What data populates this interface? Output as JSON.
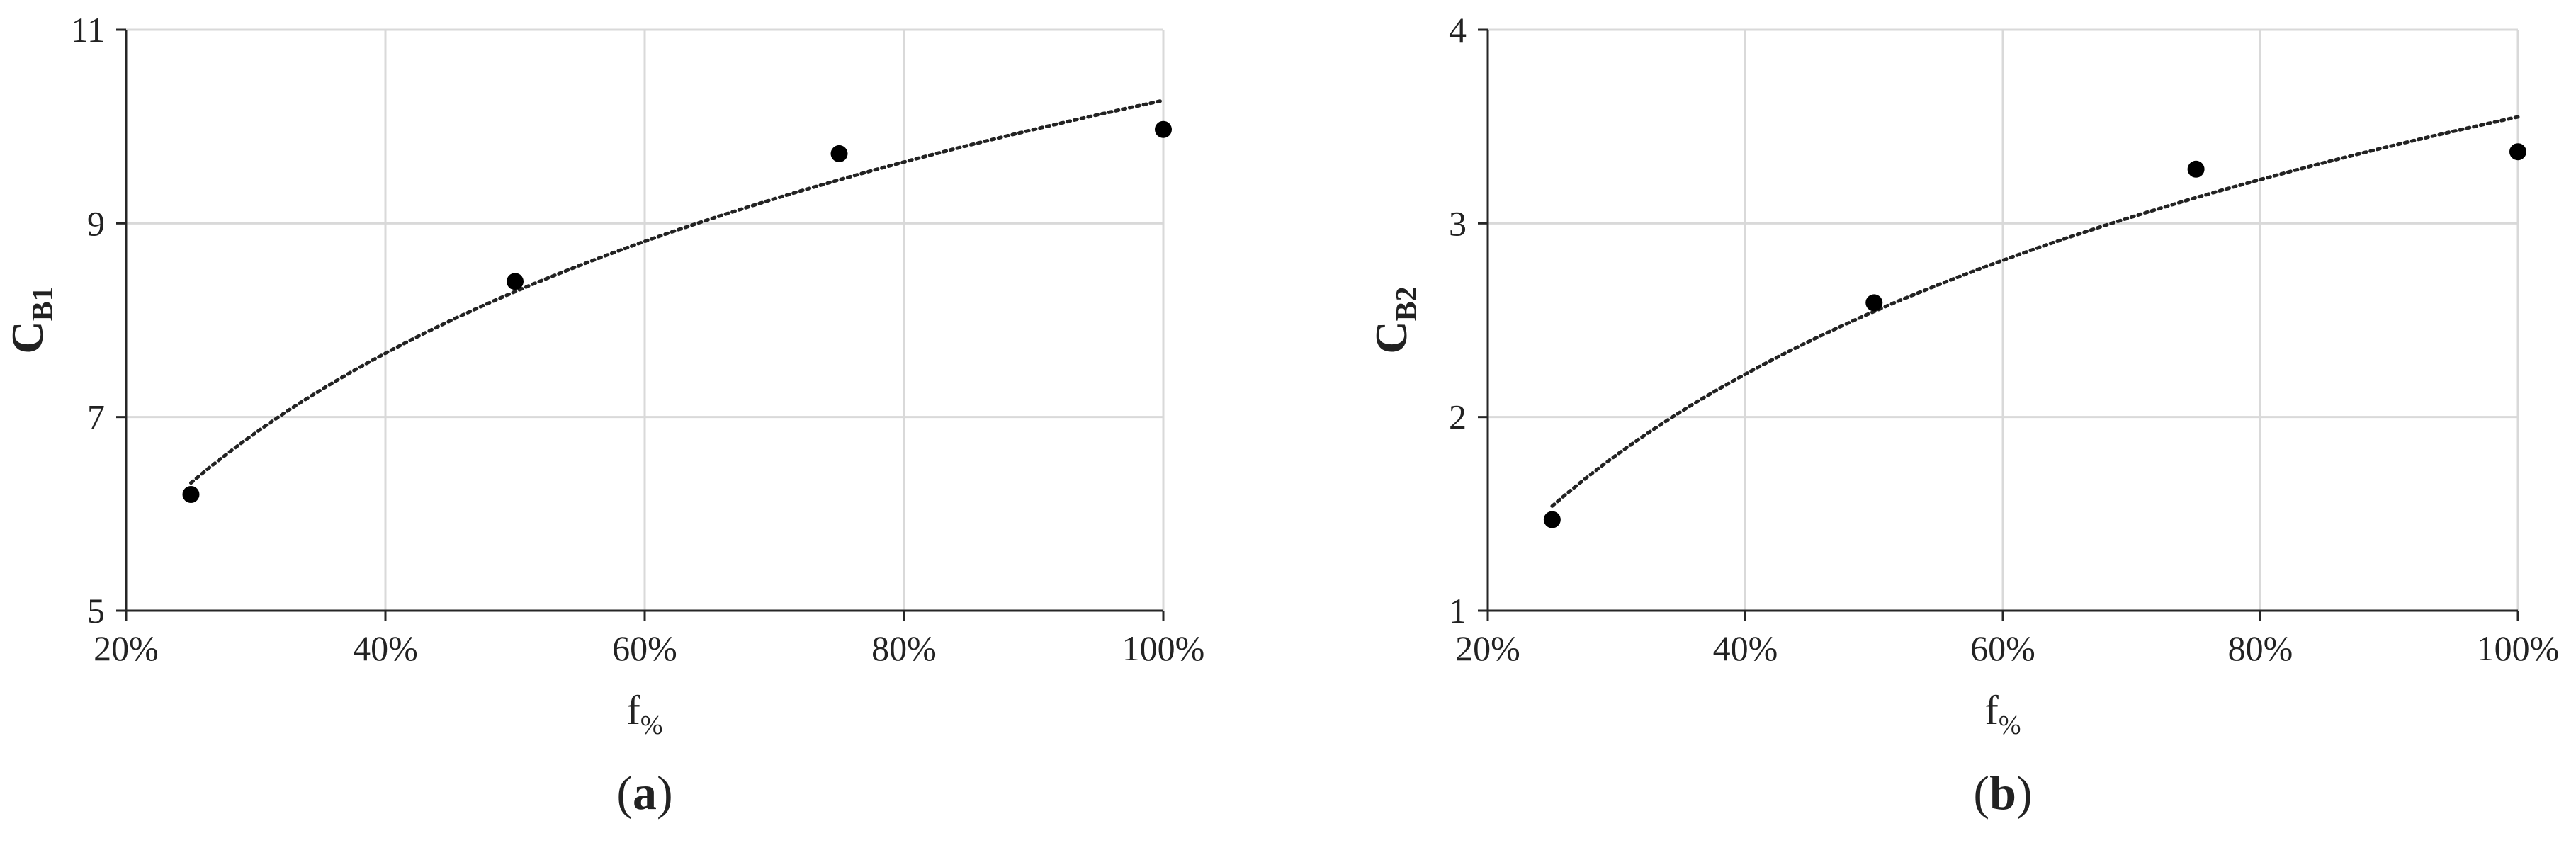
{
  "chart_data": [
    {
      "type": "scatter",
      "panel_label": "a",
      "xlabel": {
        "main": "f",
        "sub": "%"
      },
      "ylabel": {
        "main": "C",
        "sub": "B1"
      },
      "xlim": [
        0.2,
        1.0
      ],
      "ylim": [
        5,
        11
      ],
      "xticks": [
        0.2,
        0.4,
        0.6,
        0.8,
        1.0
      ],
      "xtick_labels": [
        "20%",
        "40%",
        "60%",
        "80%",
        "100%"
      ],
      "yticks": [
        5,
        7,
        9,
        11
      ],
      "ytick_labels": [
        "5",
        "7",
        "9",
        "11"
      ],
      "grid": true,
      "legend": "none",
      "points": {
        "x": [
          0.25,
          0.5,
          0.75,
          1.0
        ],
        "y": [
          6.2,
          8.4,
          9.72,
          9.97
        ]
      },
      "trendline": {
        "type": "logarithmic",
        "style": "dotted",
        "a": 10.27,
        "b": 2.85
      },
      "colors": {
        "points": "#000000",
        "trendline": "#222222",
        "grid": "#d9d9d9"
      }
    },
    {
      "type": "scatter",
      "panel_label": "b",
      "xlabel": {
        "main": "f",
        "sub": "%"
      },
      "ylabel": {
        "main": "C",
        "sub": "B2"
      },
      "xlim": [
        0.2,
        1.0
      ],
      "ylim": [
        1,
        4
      ],
      "xticks": [
        0.2,
        0.4,
        0.6,
        0.8,
        1.0
      ],
      "xtick_labels": [
        "20%",
        "40%",
        "60%",
        "80%",
        "100%"
      ],
      "yticks": [
        1,
        2,
        3,
        4
      ],
      "ytick_labels": [
        "1",
        "2",
        "3",
        "4"
      ],
      "grid": true,
      "legend": "none",
      "points": {
        "x": [
          0.25,
          0.5,
          0.75,
          1.0
        ],
        "y": [
          1.47,
          2.59,
          3.28,
          3.37
        ]
      },
      "trendline": {
        "type": "logarithmic",
        "style": "dotted",
        "a": 3.55,
        "b": 1.45
      },
      "colors": {
        "points": "#000000",
        "trendline": "#222222",
        "grid": "#d9d9d9"
      }
    }
  ]
}
